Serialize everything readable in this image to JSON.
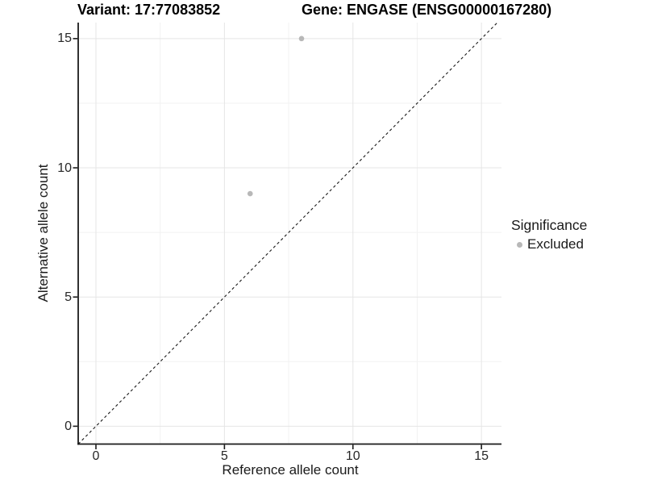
{
  "figure": {
    "background": "#ffffff"
  },
  "chart_data": {
    "type": "scatter",
    "titles": {
      "left": "Variant: 17:77083852",
      "right": "Gene: ENGASE (ENSG00000167280)"
    },
    "xlabel": "Reference allele count",
    "ylabel": "Alternative allele count",
    "x_ticks": [
      0,
      5,
      10,
      15
    ],
    "y_ticks": [
      0,
      5,
      10,
      15
    ],
    "x_minor_ticks": [
      2.5,
      7.5,
      12.5
    ],
    "y_minor_ticks": [
      2.5,
      7.5,
      12.5
    ],
    "xlim": [
      -0.69,
      15.78
    ],
    "ylim": [
      -0.69,
      15.62
    ],
    "grid": "major+minor",
    "series": [
      {
        "name": "Excluded",
        "color": "#b8b8b8",
        "marker": "circle",
        "points": [
          {
            "x": 8,
            "y": 15
          },
          {
            "x": 6,
            "y": 9
          }
        ]
      }
    ],
    "reference_line": {
      "kind": "identity",
      "equation": "y = x",
      "style": "dashed",
      "color": "#1a1a1a"
    },
    "legend": {
      "title": "Significance",
      "position": "right",
      "entries": [
        {
          "label": "Excluded",
          "color": "#b8b8b8"
        }
      ]
    },
    "colors": {
      "grid_major": "#e5e5e5",
      "grid_minor": "#f2f2f2",
      "axis": "#1a1a1a",
      "point": "#b8b8b8"
    }
  }
}
